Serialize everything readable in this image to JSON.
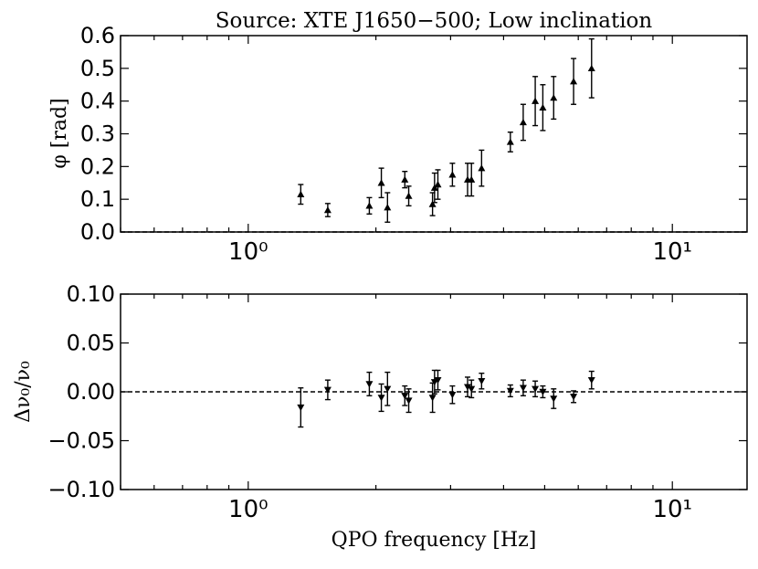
{
  "chart_data": [
    {
      "type": "scatter",
      "title": "Source: XTE J1650−500; Low inclination",
      "xlabel": "",
      "ylabel": "φ [rad]",
      "xscale": "log",
      "xlim": [
        0.5,
        15
      ],
      "ylim": [
        0.0,
        0.6
      ],
      "x_tick_labels": [
        "10⁰",
        "10¹"
      ],
      "y_tick_labels": [
        "0.0",
        "0.1",
        "0.2",
        "0.3",
        "0.4",
        "0.5",
        "0.6"
      ],
      "reference_line": 0.0,
      "marker": "up-triangle",
      "points": [
        {
          "x": 1.33,
          "y": 0.115,
          "err": 0.03
        },
        {
          "x": 1.54,
          "y": 0.067,
          "err": 0.02
        },
        {
          "x": 1.93,
          "y": 0.08,
          "err": 0.025
        },
        {
          "x": 2.06,
          "y": 0.15,
          "err": 0.045
        },
        {
          "x": 2.13,
          "y": 0.075,
          "err": 0.045
        },
        {
          "x": 2.34,
          "y": 0.16,
          "err": 0.025
        },
        {
          "x": 2.39,
          "y": 0.11,
          "err": 0.03
        },
        {
          "x": 2.72,
          "y": 0.085,
          "err": 0.035
        },
        {
          "x": 2.75,
          "y": 0.135,
          "err": 0.045
        },
        {
          "x": 2.8,
          "y": 0.145,
          "err": 0.045
        },
        {
          "x": 3.03,
          "y": 0.175,
          "err": 0.035
        },
        {
          "x": 3.29,
          "y": 0.16,
          "err": 0.05
        },
        {
          "x": 3.36,
          "y": 0.16,
          "err": 0.05
        },
        {
          "x": 3.55,
          "y": 0.195,
          "err": 0.055
        },
        {
          "x": 4.15,
          "y": 0.275,
          "err": 0.03
        },
        {
          "x": 4.45,
          "y": 0.335,
          "err": 0.055
        },
        {
          "x": 4.75,
          "y": 0.4,
          "err": 0.075
        },
        {
          "x": 4.95,
          "y": 0.38,
          "err": 0.07
        },
        {
          "x": 5.25,
          "y": 0.41,
          "err": 0.065
        },
        {
          "x": 5.85,
          "y": 0.46,
          "err": 0.07
        },
        {
          "x": 6.45,
          "y": 0.5,
          "err": 0.09
        }
      ]
    },
    {
      "type": "scatter",
      "title": "",
      "xlabel": "QPO frequency [Hz]",
      "ylabel": "Δν₀/ν₀",
      "xscale": "log",
      "xlim": [
        0.5,
        15
      ],
      "ylim": [
        -0.1,
        0.1
      ],
      "x_tick_labels": [
        "10⁰",
        "10¹"
      ],
      "y_tick_labels": [
        "−0.10",
        "−0.05",
        "0.00",
        "0.05",
        "0.10"
      ],
      "reference_line": 0.0,
      "marker": "down-triangle",
      "points": [
        {
          "x": 1.33,
          "y": -0.016,
          "err": 0.02
        },
        {
          "x": 1.54,
          "y": 0.002,
          "err": 0.01
        },
        {
          "x": 1.93,
          "y": 0.008,
          "err": 0.012
        },
        {
          "x": 2.06,
          "y": -0.006,
          "err": 0.014
        },
        {
          "x": 2.13,
          "y": 0.003,
          "err": 0.017
        },
        {
          "x": 2.34,
          "y": -0.004,
          "err": 0.01
        },
        {
          "x": 2.39,
          "y": -0.009,
          "err": 0.012
        },
        {
          "x": 2.72,
          "y": -0.006,
          "err": 0.015
        },
        {
          "x": 2.75,
          "y": 0.01,
          "err": 0.012
        },
        {
          "x": 2.8,
          "y": 0.012,
          "err": 0.01
        },
        {
          "x": 3.03,
          "y": -0.003,
          "err": 0.009
        },
        {
          "x": 3.29,
          "y": 0.005,
          "err": 0.01
        },
        {
          "x": 3.36,
          "y": 0.003,
          "err": 0.009
        },
        {
          "x": 3.55,
          "y": 0.011,
          "err": 0.008
        },
        {
          "x": 4.15,
          "y": 0.001,
          "err": 0.006
        },
        {
          "x": 4.45,
          "y": 0.004,
          "err": 0.008
        },
        {
          "x": 4.75,
          "y": 0.003,
          "err": 0.008
        },
        {
          "x": 4.95,
          "y": 0.0,
          "err": 0.006
        },
        {
          "x": 5.25,
          "y": -0.007,
          "err": 0.01
        },
        {
          "x": 5.85,
          "y": -0.005,
          "err": 0.006
        },
        {
          "x": 6.45,
          "y": 0.012,
          "err": 0.009
        }
      ]
    }
  ]
}
